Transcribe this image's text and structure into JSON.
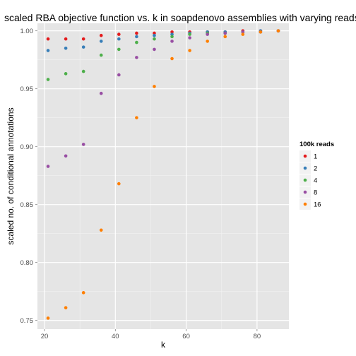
{
  "chart_data": {
    "type": "scatter",
    "title": "scaled RBA objective function vs. k in soapdenovo assemblies with varying reads",
    "xlabel": "k",
    "ylabel": "scaled no. of conditional annotations",
    "xlim": [
      18,
      89
    ],
    "ylim": [
      0.7425,
      1.0065
    ],
    "xticks": [
      20,
      40,
      60,
      80
    ],
    "yticks": [
      0.75,
      0.8,
      0.85,
      0.9,
      0.95,
      1.0
    ],
    "xtick_labels": [
      "20",
      "40",
      "60",
      "80"
    ],
    "ytick_labels": [
      "0.75",
      "0.80",
      "0.85",
      "0.90",
      "0.95",
      "1.00"
    ],
    "grid": true,
    "legend": {
      "title": "100k reads",
      "placement": "right"
    },
    "series": [
      {
        "name": "1",
        "color": "#e41a1c",
        "x": [
          21,
          26,
          31,
          36,
          41,
          46,
          51,
          56,
          61,
          66,
          71,
          76,
          81,
          86
        ],
        "y": [
          0.993,
          0.993,
          0.993,
          0.996,
          0.997,
          0.998,
          0.998,
          0.999,
          0.999,
          0.999,
          0.999,
          1.0,
          1.0,
          1.0
        ]
      },
      {
        "name": "2",
        "color": "#377eb8",
        "x": [
          21,
          26,
          31,
          36,
          41,
          46,
          51,
          56,
          61,
          66,
          71,
          76,
          81,
          86
        ],
        "y": [
          0.983,
          0.985,
          0.986,
          0.991,
          0.993,
          0.995,
          0.996,
          0.997,
          0.998,
          0.999,
          0.999,
          0.999,
          1.0,
          1.0
        ]
      },
      {
        "name": "4",
        "color": "#4daf4a",
        "x": [
          21,
          26,
          31,
          36,
          41,
          46,
          51,
          56,
          61,
          66,
          71,
          76,
          81,
          86
        ],
        "y": [
          0.958,
          0.963,
          0.965,
          0.979,
          0.984,
          0.99,
          0.993,
          0.995,
          0.997,
          0.998,
          0.998,
          0.999,
          0.999,
          1.0
        ]
      },
      {
        "name": "8",
        "color": "#984ea3",
        "x": [
          21,
          26,
          31,
          36,
          41,
          46,
          51,
          56,
          61,
          66,
          71,
          76,
          81,
          86
        ],
        "y": [
          0.883,
          0.892,
          0.902,
          0.946,
          0.962,
          0.977,
          0.984,
          0.991,
          0.994,
          0.997,
          0.998,
          0.999,
          0.999,
          1.0
        ]
      },
      {
        "name": "16",
        "color": "#ff7f00",
        "x": [
          21,
          26,
          31,
          36,
          41,
          46,
          51,
          56,
          61,
          66,
          71,
          76,
          81,
          86
        ],
        "y": [
          0.752,
          0.761,
          0.774,
          0.828,
          0.868,
          0.925,
          0.952,
          0.976,
          0.983,
          0.991,
          0.995,
          0.997,
          0.999,
          1.0
        ]
      }
    ]
  }
}
